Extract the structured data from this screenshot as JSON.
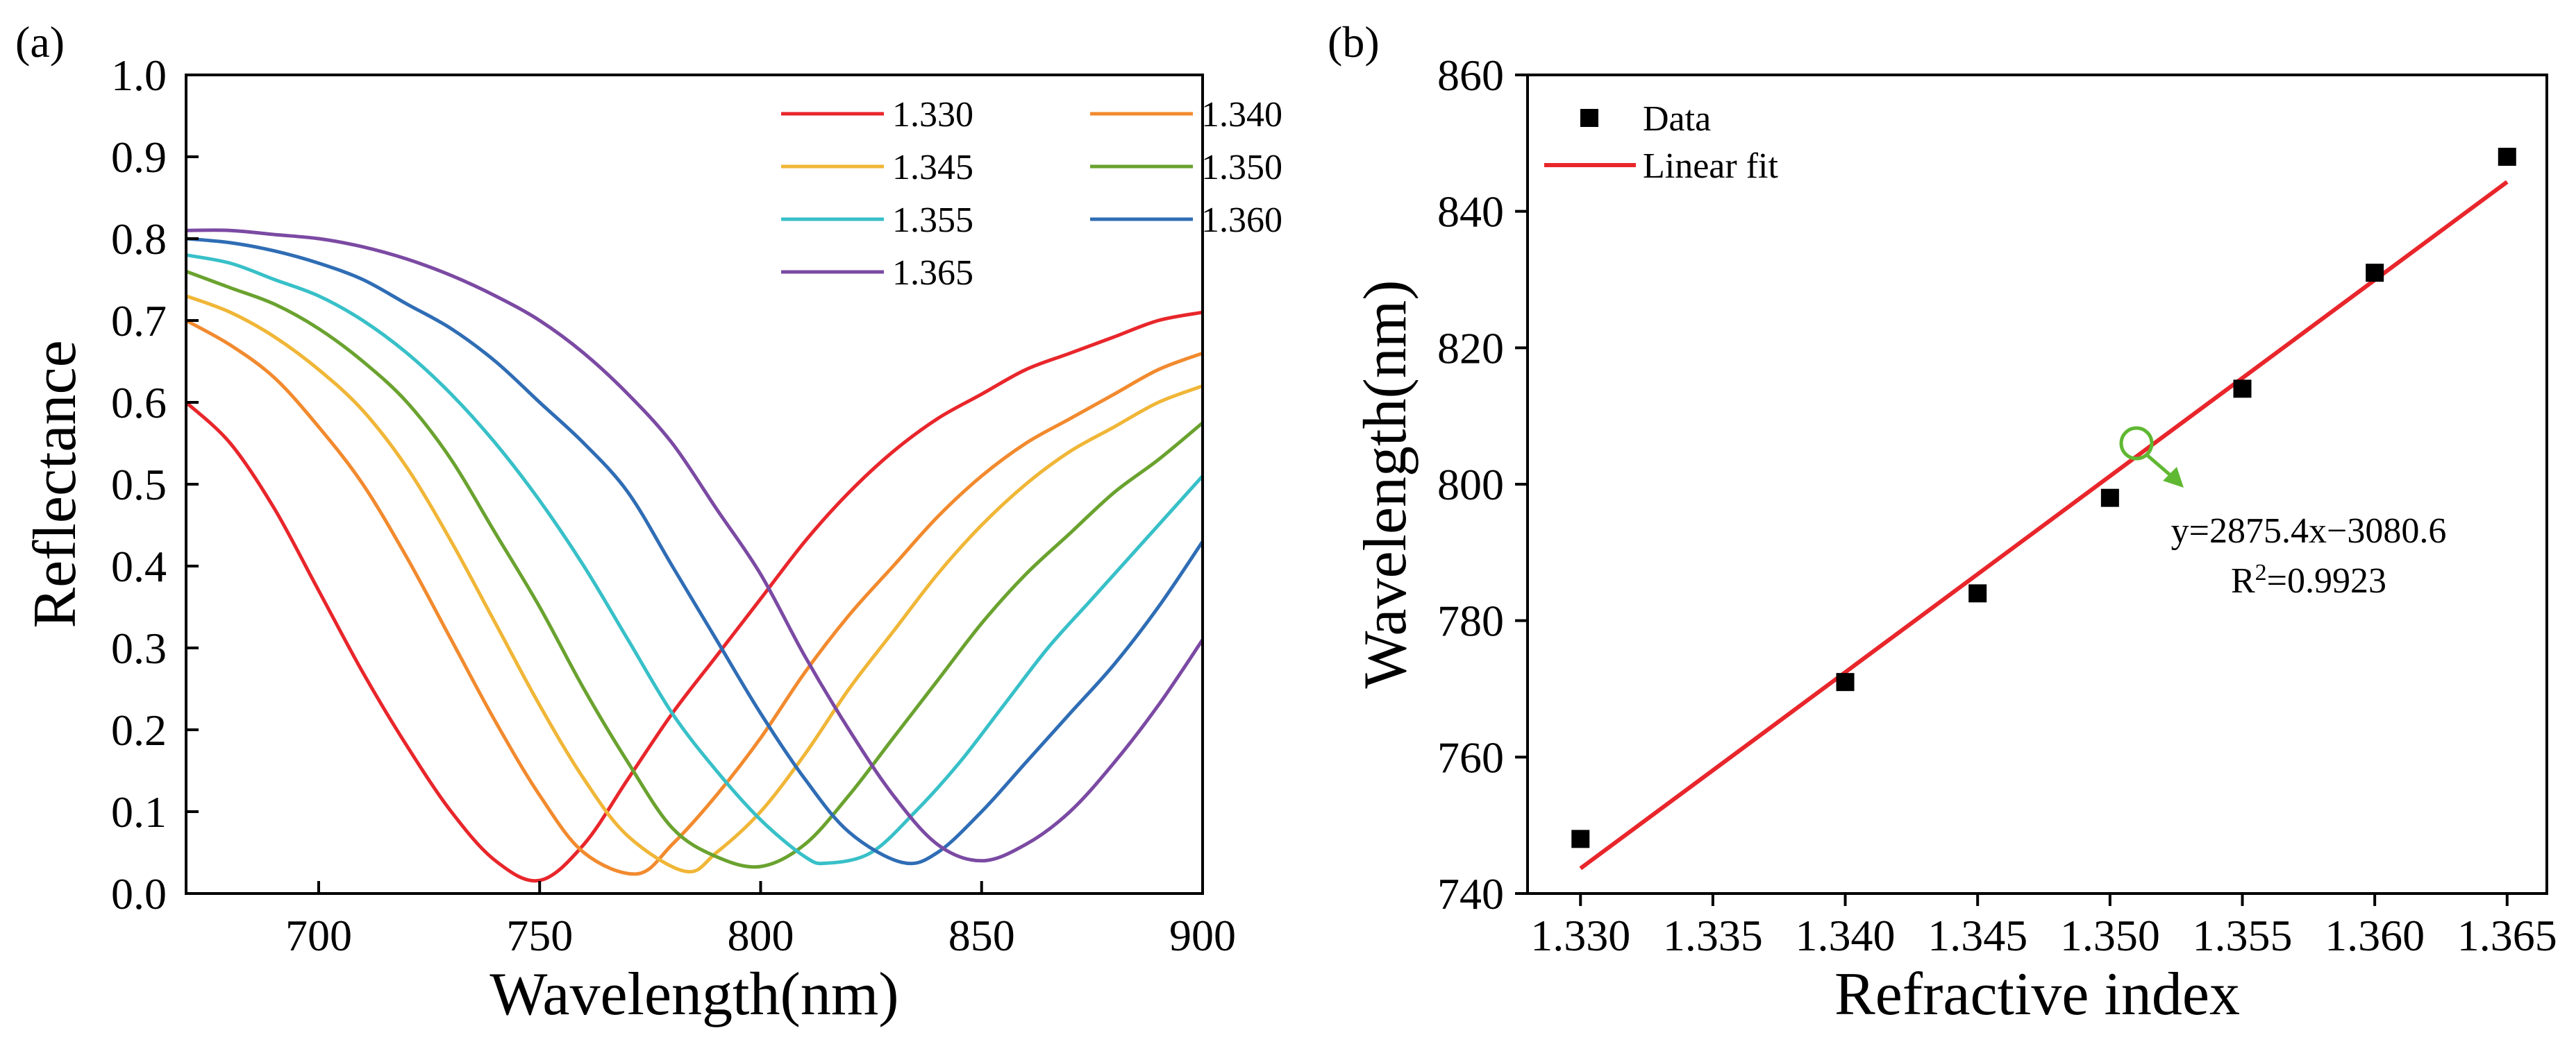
{
  "chart_data": [
    {
      "panel": "(a)",
      "type": "line",
      "xlabel": "Wavelength(nm)",
      "ylabel": "Reflectance",
      "xlim": [
        670,
        900
      ],
      "ylim": [
        0.0,
        1.0
      ],
      "xticks": [
        "700",
        "750",
        "800",
        "850",
        "900"
      ],
      "xtick_values": [
        700,
        750,
        800,
        850,
        900
      ],
      "yticks": [
        "0.0",
        "0.1",
        "0.2",
        "0.3",
        "0.4",
        "0.5",
        "0.6",
        "0.7",
        "0.8",
        "0.9",
        "1.0"
      ],
      "ytick_values": [
        0.0,
        0.1,
        0.2,
        0.3,
        0.4,
        0.5,
        0.6,
        0.7,
        0.8,
        0.9,
        1.0
      ],
      "legend_location": "top-right",
      "series": [
        {
          "name": "1.330",
          "color": "#e8262b",
          "points": [
            [
              670,
              0.6
            ],
            [
              680,
              0.55
            ],
            [
              690,
              0.47
            ],
            [
              700,
              0.37
            ],
            [
              710,
              0.27
            ],
            [
              720,
              0.18
            ],
            [
              730,
              0.1
            ],
            [
              740,
              0.04
            ],
            [
              750,
              0.016
            ],
            [
              760,
              0.06
            ],
            [
              770,
              0.14
            ],
            [
              780,
              0.22
            ],
            [
              790,
              0.29
            ],
            [
              800,
              0.36
            ],
            [
              810,
              0.43
            ],
            [
              820,
              0.49
            ],
            [
              830,
              0.54
            ],
            [
              840,
              0.58
            ],
            [
              850,
              0.61
            ],
            [
              860,
              0.64
            ],
            [
              870,
              0.66
            ],
            [
              880,
              0.68
            ],
            [
              890,
              0.7
            ],
            [
              900,
              0.71
            ]
          ]
        },
        {
          "name": "1.340",
          "color": "#f28a2e",
          "points": [
            [
              670,
              0.7
            ],
            [
              680,
              0.67
            ],
            [
              690,
              0.63
            ],
            [
              700,
              0.57
            ],
            [
              710,
              0.5
            ],
            [
              720,
              0.41
            ],
            [
              730,
              0.31
            ],
            [
              740,
              0.21
            ],
            [
              750,
              0.12
            ],
            [
              760,
              0.05
            ],
            [
              772,
              0.024
            ],
            [
              780,
              0.06
            ],
            [
              790,
              0.12
            ],
            [
              800,
              0.19
            ],
            [
              810,
              0.27
            ],
            [
              820,
              0.34
            ],
            [
              830,
              0.4
            ],
            [
              840,
              0.46
            ],
            [
              850,
              0.51
            ],
            [
              860,
              0.55
            ],
            [
              870,
              0.58
            ],
            [
              880,
              0.61
            ],
            [
              890,
              0.64
            ],
            [
              900,
              0.66
            ]
          ]
        },
        {
          "name": "1.345",
          "color": "#f0b637",
          "points": [
            [
              670,
              0.73
            ],
            [
              680,
              0.71
            ],
            [
              690,
              0.68
            ],
            [
              700,
              0.64
            ],
            [
              710,
              0.59
            ],
            [
              720,
              0.52
            ],
            [
              730,
              0.43
            ],
            [
              740,
              0.33
            ],
            [
              750,
              0.23
            ],
            [
              760,
              0.14
            ],
            [
              770,
              0.07
            ],
            [
              783,
              0.027
            ],
            [
              790,
              0.05
            ],
            [
              800,
              0.1
            ],
            [
              810,
              0.17
            ],
            [
              820,
              0.25
            ],
            [
              830,
              0.32
            ],
            [
              840,
              0.39
            ],
            [
              850,
              0.45
            ],
            [
              860,
              0.5
            ],
            [
              870,
              0.54
            ],
            [
              880,
              0.57
            ],
            [
              890,
              0.6
            ],
            [
              900,
              0.62
            ]
          ]
        },
        {
          "name": "1.350",
          "color": "#6aa22f",
          "points": [
            [
              670,
              0.76
            ],
            [
              680,
              0.74
            ],
            [
              690,
              0.72
            ],
            [
              700,
              0.69
            ],
            [
              710,
              0.65
            ],
            [
              720,
              0.6
            ],
            [
              730,
              0.53
            ],
            [
              740,
              0.44
            ],
            [
              750,
              0.35
            ],
            [
              760,
              0.25
            ],
            [
              770,
              0.16
            ],
            [
              780,
              0.08
            ],
            [
              790,
              0.045
            ],
            [
              800,
              0.033
            ],
            [
              810,
              0.06
            ],
            [
              820,
              0.12
            ],
            [
              830,
              0.19
            ],
            [
              840,
              0.26
            ],
            [
              850,
              0.33
            ],
            [
              860,
              0.39
            ],
            [
              870,
              0.44
            ],
            [
              880,
              0.49
            ],
            [
              890,
              0.53
            ],
            [
              900,
              0.575
            ]
          ]
        },
        {
          "name": "1.355",
          "color": "#38c0c8",
          "points": [
            [
              670,
              0.78
            ],
            [
              680,
              0.77
            ],
            [
              690,
              0.75
            ],
            [
              700,
              0.73
            ],
            [
              710,
              0.7
            ],
            [
              720,
              0.66
            ],
            [
              730,
              0.61
            ],
            [
              740,
              0.55
            ],
            [
              750,
              0.48
            ],
            [
              760,
              0.4
            ],
            [
              770,
              0.31
            ],
            [
              780,
              0.22
            ],
            [
              790,
              0.15
            ],
            [
              800,
              0.09
            ],
            [
              810,
              0.045
            ],
            [
              815,
              0.037
            ],
            [
              825,
              0.05
            ],
            [
              835,
              0.1
            ],
            [
              845,
              0.16
            ],
            [
              855,
              0.23
            ],
            [
              865,
              0.3
            ],
            [
              875,
              0.36
            ],
            [
              885,
              0.42
            ],
            [
              895,
              0.48
            ],
            [
              900,
              0.51
            ]
          ]
        },
        {
          "name": "1.360",
          "color": "#2f6db5",
          "points": [
            [
              670,
              0.8
            ],
            [
              680,
              0.795
            ],
            [
              690,
              0.785
            ],
            [
              700,
              0.77
            ],
            [
              710,
              0.75
            ],
            [
              720,
              0.72
            ],
            [
              730,
              0.69
            ],
            [
              740,
              0.65
            ],
            [
              750,
              0.6
            ],
            [
              760,
              0.55
            ],
            [
              770,
              0.49
            ],
            [
              780,
              0.4
            ],
            [
              790,
              0.31
            ],
            [
              800,
              0.22
            ],
            [
              810,
              0.14
            ],
            [
              820,
              0.075
            ],
            [
              832,
              0.038
            ],
            [
              840,
              0.05
            ],
            [
              850,
              0.1
            ],
            [
              860,
              0.16
            ],
            [
              870,
              0.22
            ],
            [
              880,
              0.28
            ],
            [
              890,
              0.35
            ],
            [
              900,
              0.43
            ]
          ]
        },
        {
          "name": "1.365",
          "color": "#7b4aa3",
          "points": [
            [
              670,
              0.81
            ],
            [
              680,
              0.81
            ],
            [
              690,
              0.805
            ],
            [
              700,
              0.8
            ],
            [
              710,
              0.79
            ],
            [
              720,
              0.775
            ],
            [
              730,
              0.755
            ],
            [
              740,
              0.73
            ],
            [
              750,
              0.7
            ],
            [
              760,
              0.66
            ],
            [
              770,
              0.61
            ],
            [
              780,
              0.55
            ],
            [
              790,
              0.47
            ],
            [
              800,
              0.39
            ],
            [
              810,
              0.29
            ],
            [
              820,
              0.2
            ],
            [
              830,
              0.12
            ],
            [
              840,
              0.06
            ],
            [
              850,
              0.04
            ],
            [
              860,
              0.06
            ],
            [
              870,
              0.1
            ],
            [
              880,
              0.16
            ],
            [
              890,
              0.23
            ],
            [
              900,
              0.31
            ]
          ]
        }
      ]
    },
    {
      "panel": "(b)",
      "type": "scatter",
      "xlabel": "Refractive index",
      "ylabel": "Wavelength(nm)",
      "xlim": [
        1.328,
        1.3665
      ],
      "ylim": [
        740,
        860
      ],
      "xticks": [
        "1.330",
        "1.335",
        "1.340",
        "1.345",
        "1.350",
        "1.355",
        "1.360",
        "1.365"
      ],
      "xtick_values": [
        1.33,
        1.335,
        1.34,
        1.345,
        1.35,
        1.355,
        1.36,
        1.365
      ],
      "yticks": [
        "740",
        "760",
        "780",
        "800",
        "820",
        "840",
        "860"
      ],
      "ytick_values": [
        740,
        760,
        780,
        800,
        820,
        840,
        860
      ],
      "legend_location": "top-left",
      "legend": [
        "Data",
        "Linear fit"
      ],
      "data": {
        "name": "Data",
        "color": "#000000",
        "x": [
          1.33,
          1.34,
          1.345,
          1.35,
          1.355,
          1.36,
          1.365
        ],
        "y": [
          748,
          771,
          784,
          798,
          814,
          831,
          848
        ]
      },
      "fit": {
        "name": "Linear fit",
        "color": "#e8262b",
        "slope": 2875.4,
        "intercept": -3080.6,
        "x_range": [
          1.33,
          1.365
        ]
      },
      "annotation": {
        "equation": "y=2875.4x−3080.6",
        "r2_prefix": "R",
        "r2_sup": "2",
        "r2_value": "=0.9923",
        "marker_color": "#5fb832",
        "marker_at": [
          1.351,
          806
        ]
      }
    }
  ]
}
